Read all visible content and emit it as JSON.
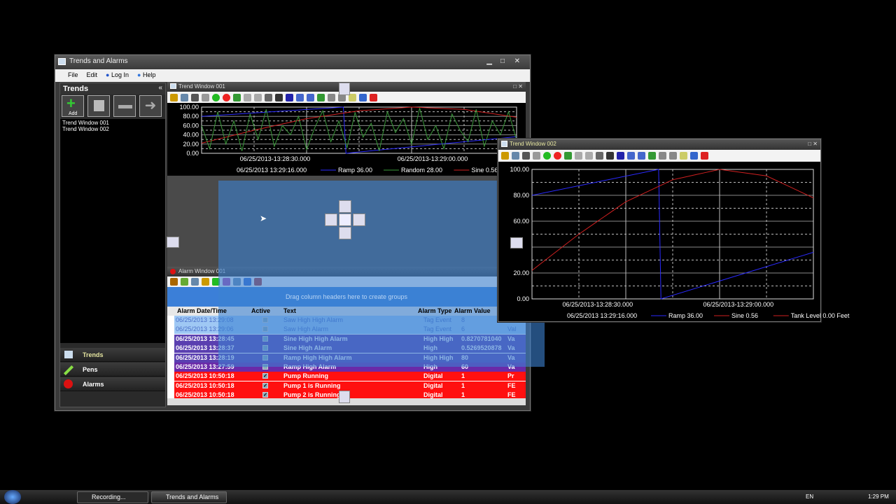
{
  "app": {
    "title": "Trends and Alarms",
    "menu": [
      "File",
      "Edit",
      "Log In",
      "Help"
    ]
  },
  "sidebar": {
    "title": "Trends",
    "add_label": "Add",
    "items": [
      "Trend Window 001",
      "Trend Window 002"
    ],
    "nav": [
      "Trends",
      "Pens",
      "Alarms"
    ]
  },
  "trend1": {
    "title": "Trend Window 001",
    "y_ticks": [
      "100.00",
      "80.00",
      "60.00",
      "40.00",
      "20.00",
      "0.00"
    ],
    "x_ticks": [
      "06/25/2013-13:28:30.000",
      "06/25/2013-13:29:00.000"
    ],
    "cursor_time": "06/25/2013 13:29:16.000",
    "legend": [
      {
        "label": "Ramp 36.00",
        "color": "#2a2aff"
      },
      {
        "label": "Random 28.00",
        "color": "#3a9a3a"
      },
      {
        "label": "Sine 0.56",
        "color": "#d02020"
      }
    ]
  },
  "trend2": {
    "title": "Trend Window 002",
    "y_ticks": [
      "100.00",
      "80.00",
      "60.00",
      "",
      "20.00",
      "0.00"
    ],
    "x_ticks": [
      "06/25/2013-13:28:30.000",
      "06/25/2013-13:29:00.000"
    ],
    "cursor_time": "06/25/2013 13:29:16.000",
    "legend": [
      {
        "label": "Ramp 36.00",
        "color": "#2a2aff"
      },
      {
        "label": "Sine 0.56",
        "color": "#d02020"
      },
      {
        "label": "Tank Level 0.00 Feet",
        "color": "#d02020"
      }
    ]
  },
  "chart_data": [
    {
      "type": "line",
      "title": "Trend Window 001",
      "ylim": [
        0,
        100
      ],
      "x_range": [
        "13:28:16",
        "13:29:16"
      ],
      "grid": true,
      "series": [
        {
          "name": "Ramp",
          "x": [
            "13:28:16",
            "13:28:43",
            "13:28:43.5",
            "13:29:16"
          ],
          "values": [
            80,
            100,
            0,
            36
          ]
        },
        {
          "name": "Sine",
          "x": [
            "13:28:16",
            "13:28:26",
            "13:28:36",
            "13:28:46",
            "13:28:56",
            "13:29:06",
            "13:29:16"
          ],
          "values": [
            22,
            50,
            75,
            92,
            100,
            95,
            78
          ]
        },
        {
          "name": "Random",
          "values": [
            60,
            10,
            90,
            20,
            70,
            5,
            85,
            30,
            95,
            15,
            60,
            40,
            80,
            8,
            55,
            92,
            25,
            70,
            12,
            88,
            35,
            65,
            5,
            90,
            45,
            75,
            20,
            98,
            30,
            60,
            10,
            85,
            50,
            25,
            95,
            15,
            70,
            40,
            90,
            28
          ]
        }
      ]
    },
    {
      "type": "line",
      "title": "Trend Window 002",
      "ylim": [
        0,
        100
      ],
      "x_range": [
        "13:28:16",
        "13:29:16"
      ],
      "grid": true,
      "series": [
        {
          "name": "Ramp",
          "x": [
            "13:28:16",
            "13:28:43",
            "13:28:43.5",
            "13:29:16"
          ],
          "values": [
            80,
            100,
            0,
            36
          ]
        },
        {
          "name": "Sine",
          "x": [
            "13:28:16",
            "13:28:26",
            "13:28:36",
            "13:28:46",
            "13:28:56",
            "13:29:06",
            "13:29:16"
          ],
          "values": [
            22,
            50,
            75,
            92,
            100,
            95,
            78
          ]
        }
      ]
    }
  ],
  "alarm": {
    "title": "Alarm Window 001",
    "group_hint": "Drag column headers here to create groups",
    "columns": [
      "Alarm Date/Time",
      "Active",
      "Text",
      "Alarm Type",
      "Alarm Value"
    ],
    "rows": [
      {
        "time": "06/25/2013 13:29:08",
        "active": false,
        "text": "Saw High High Alarm",
        "type": "Tag Event",
        "value": "8",
        "extra": "",
        "style": "light"
      },
      {
        "time": "06/25/2013 13:29:06",
        "active": false,
        "text": "Saw High Alarm",
        "type": "Tag Event",
        "value": "6",
        "extra": "Val",
        "style": "light"
      },
      {
        "time": "06/25/2013 13:28:45",
        "active": false,
        "text": "Sine High High Alarm",
        "type": "High High",
        "value": "0.8270781040",
        "extra": "Va",
        "style": "purple"
      },
      {
        "time": "06/25/2013 13:28:37",
        "active": false,
        "text": "Sine High Alarm",
        "type": "High",
        "value": "0.5269520878",
        "extra": "Va",
        "style": "purple"
      },
      {
        "time": "06/25/2013 13:28:19",
        "active": false,
        "text": "Ramp High High Alarm",
        "type": "High High",
        "value": "80",
        "extra": "Va",
        "style": "purple"
      },
      {
        "time": "06/25/2013 13:27:59",
        "active": false,
        "text": "Ramp High Alarm",
        "type": "High",
        "value": "60",
        "extra": "Va",
        "style": "violet"
      },
      {
        "time": "06/25/2013 10:50:18",
        "active": true,
        "text": "Pump Running",
        "type": "Digital",
        "value": "1",
        "extra": "Pr",
        "style": "red"
      },
      {
        "time": "06/25/2013 10:50:18",
        "active": true,
        "text": "Pump 1 is Running",
        "type": "Digital",
        "value": "1",
        "extra": "FE",
        "style": "red"
      },
      {
        "time": "06/25/2013 10:50:18",
        "active": true,
        "text": "Pump 2 is Running",
        "type": "Digital",
        "value": "1",
        "extra": "FE",
        "style": "red"
      }
    ]
  },
  "taskbar": {
    "items": [
      "Recording...",
      "Trends and Alarms"
    ],
    "lang": "EN",
    "clock": "1:29 PM"
  },
  "colors": {
    "dock_overlay": "#3c82d2",
    "ramp": "#2a2aff",
    "sine": "#d02020",
    "random": "#3a9a3a",
    "alarm_red": "#ff1010",
    "alarm_purple": "#5a3fb0"
  }
}
